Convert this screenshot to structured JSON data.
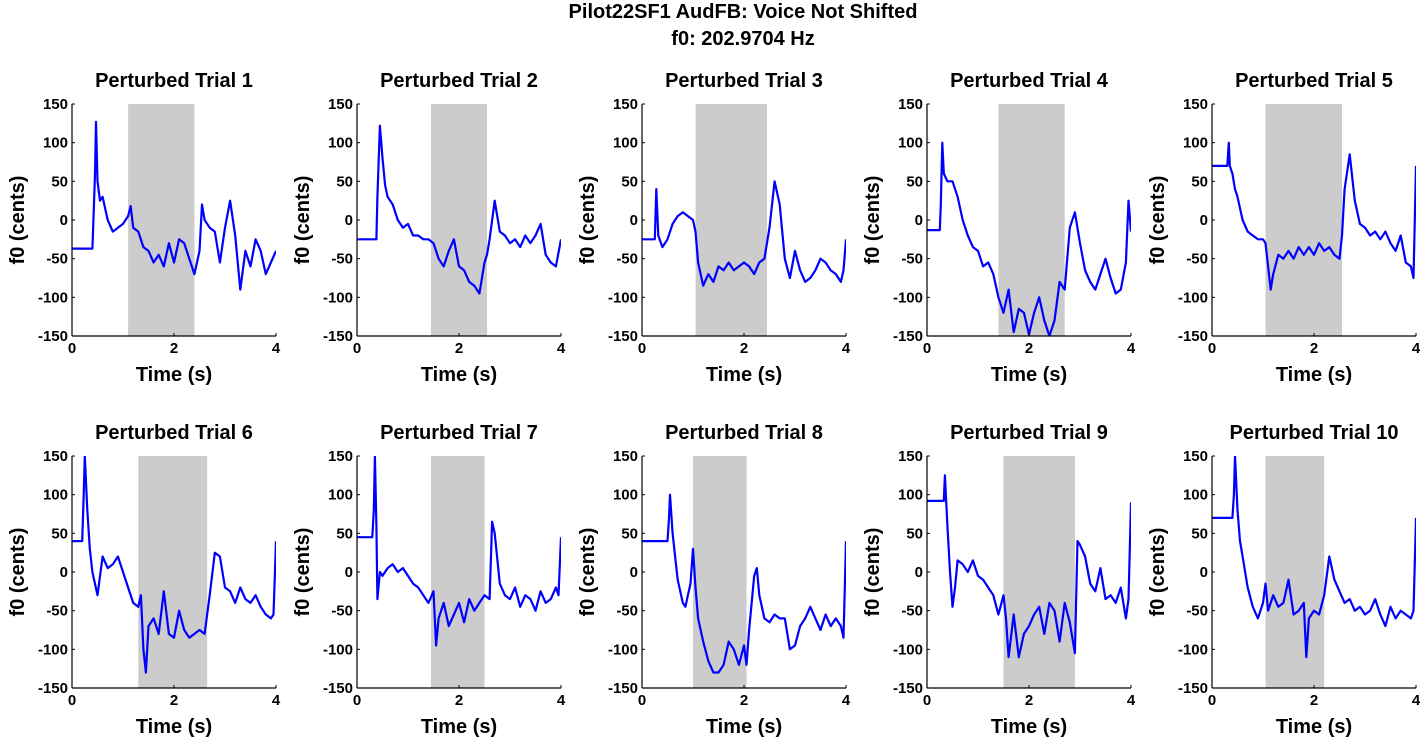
{
  "figure": {
    "title_line1": "Pilot22SF1 AudFB: Voice Not Shifted",
    "title_line2": "f0: 202.9704 Hz"
  },
  "colors": {
    "trace": "#0000ff",
    "shade": "#cccccc",
    "axes": "#000000"
  },
  "chart_data": [
    {
      "type": "line",
      "title": "Perturbed Trial 1",
      "xlabel": "Time (s)",
      "ylabel": "f0 (cents)",
      "xlim": [
        0,
        4
      ],
      "ylim": [
        -150,
        150
      ],
      "xticks": [
        0,
        2,
        4
      ],
      "yticks": [
        -150,
        -100,
        -50,
        0,
        50,
        100,
        150
      ],
      "shaded": [
        1.1,
        2.4
      ],
      "x": [
        0,
        0.4,
        0.41,
        0.45,
        0.47,
        0.5,
        0.55,
        0.6,
        0.7,
        0.8,
        0.9,
        1.0,
        1.1,
        1.15,
        1.2,
        1.3,
        1.4,
        1.5,
        1.6,
        1.7,
        1.8,
        1.9,
        2.0,
        2.1,
        2.2,
        2.3,
        2.4,
        2.5,
        2.55,
        2.6,
        2.7,
        2.8,
        2.9,
        3.0,
        3.1,
        3.2,
        3.3,
        3.4,
        3.5,
        3.6,
        3.7,
        3.8,
        3.9,
        4.0
      ],
      "y": [
        -37,
        -37,
        -20,
        60,
        127,
        50,
        25,
        30,
        0,
        -15,
        -10,
        -5,
        5,
        18,
        -10,
        -15,
        -35,
        -40,
        -55,
        -45,
        -60,
        -30,
        -55,
        -25,
        -30,
        -50,
        -70,
        -40,
        20,
        0,
        -10,
        -15,
        -55,
        -10,
        25,
        -20,
        -90,
        -40,
        -60,
        -25,
        -40,
        -70,
        -55,
        -40
      ]
    },
    {
      "type": "line",
      "title": "Perturbed Trial 2",
      "xlabel": "Time (s)",
      "ylabel": "f0 (cents)",
      "xlim": [
        0,
        4
      ],
      "ylim": [
        -150,
        150
      ],
      "xticks": [
        0,
        2,
        4
      ],
      "yticks": [
        -150,
        -100,
        -50,
        0,
        50,
        100,
        150
      ],
      "shaded": [
        1.45,
        2.55
      ],
      "x": [
        0,
        0.38,
        0.4,
        0.45,
        0.5,
        0.55,
        0.6,
        0.7,
        0.8,
        0.9,
        1.0,
        1.1,
        1.2,
        1.3,
        1.4,
        1.5,
        1.6,
        1.7,
        1.8,
        1.9,
        2.0,
        2.1,
        2.2,
        2.3,
        2.4,
        2.5,
        2.55,
        2.6,
        2.7,
        2.8,
        2.9,
        3.0,
        3.1,
        3.2,
        3.3,
        3.4,
        3.5,
        3.6,
        3.7,
        3.8,
        3.9,
        4.0
      ],
      "y": [
        -25,
        -25,
        30,
        122,
        80,
        45,
        30,
        20,
        0,
        -10,
        -5,
        -20,
        -20,
        -25,
        -25,
        -30,
        -50,
        -60,
        -40,
        -25,
        -60,
        -65,
        -80,
        -85,
        -95,
        -55,
        -45,
        -25,
        25,
        -15,
        -20,
        -30,
        -25,
        -35,
        -20,
        -30,
        -20,
        -5,
        -45,
        -55,
        -60,
        -25
      ]
    },
    {
      "type": "line",
      "title": "Perturbed Trial 3",
      "xlabel": "Time (s)",
      "ylabel": "f0 (cents)",
      "xlim": [
        0,
        4
      ],
      "ylim": [
        -150,
        150
      ],
      "xticks": [
        0,
        2,
        4
      ],
      "yticks": [
        -150,
        -100,
        -50,
        0,
        50,
        100,
        150
      ],
      "shaded": [
        1.05,
        2.45
      ],
      "x": [
        0,
        0.25,
        0.28,
        0.3,
        0.32,
        0.4,
        0.5,
        0.6,
        0.7,
        0.8,
        0.9,
        1.0,
        1.05,
        1.1,
        1.2,
        1.3,
        1.4,
        1.5,
        1.6,
        1.7,
        1.8,
        1.9,
        2.0,
        2.1,
        2.2,
        2.3,
        2.4,
        2.5,
        2.6,
        2.7,
        2.8,
        2.9,
        3.0,
        3.1,
        3.2,
        3.3,
        3.4,
        3.5,
        3.6,
        3.7,
        3.8,
        3.9,
        3.95,
        4.0
      ],
      "y": [
        -25,
        -25,
        40,
        10,
        -20,
        -35,
        -25,
        -5,
        5,
        10,
        5,
        0,
        -15,
        -55,
        -85,
        -70,
        -80,
        -60,
        -65,
        -55,
        -65,
        -60,
        -55,
        -60,
        -70,
        -55,
        -50,
        -10,
        50,
        20,
        -50,
        -75,
        -40,
        -65,
        -80,
        -75,
        -65,
        -50,
        -55,
        -65,
        -70,
        -80,
        -65,
        -25
      ]
    },
    {
      "type": "line",
      "title": "Perturbed Trial 4",
      "xlabel": "Time (s)",
      "ylabel": "f0 (cents)",
      "xlim": [
        0,
        4
      ],
      "ylim": [
        -150,
        150
      ],
      "xticks": [
        0,
        2,
        4
      ],
      "yticks": [
        -150,
        -100,
        -50,
        0,
        50,
        100,
        150
      ],
      "shaded": [
        1.4,
        2.7
      ],
      "x": [
        0,
        0.25,
        0.27,
        0.3,
        0.33,
        0.4,
        0.5,
        0.6,
        0.7,
        0.8,
        0.9,
        1.0,
        1.1,
        1.2,
        1.3,
        1.4,
        1.5,
        1.6,
        1.7,
        1.8,
        1.9,
        2.0,
        2.1,
        2.2,
        2.3,
        2.4,
        2.5,
        2.6,
        2.7,
        2.8,
        2.9,
        3.0,
        3.1,
        3.2,
        3.3,
        3.4,
        3.5,
        3.6,
        3.7,
        3.8,
        3.9,
        3.95,
        4.0
      ],
      "y": [
        -13,
        -13,
        20,
        100,
        60,
        50,
        50,
        30,
        0,
        -20,
        -35,
        -40,
        -60,
        -55,
        -70,
        -100,
        -120,
        -90,
        -145,
        -115,
        -120,
        -148,
        -120,
        -100,
        -130,
        -150,
        -130,
        -80,
        -90,
        -10,
        10,
        -30,
        -65,
        -80,
        -90,
        -70,
        -50,
        -75,
        -95,
        -90,
        -55,
        25,
        -15
      ]
    },
    {
      "type": "line",
      "title": "Perturbed Trial 5",
      "xlabel": "Time (s)",
      "ylabel": "f0 (cents)",
      "xlim": [
        0,
        4
      ],
      "ylim": [
        -150,
        150
      ],
      "xticks": [
        0,
        2,
        4
      ],
      "yticks": [
        -150,
        -100,
        -50,
        0,
        50,
        100,
        150
      ],
      "shaded": [
        1.05,
        2.55
      ],
      "x": [
        0,
        0.3,
        0.33,
        0.35,
        0.4,
        0.45,
        0.5,
        0.6,
        0.7,
        0.8,
        0.9,
        1.0,
        1.05,
        1.1,
        1.15,
        1.2,
        1.3,
        1.4,
        1.5,
        1.6,
        1.7,
        1.8,
        1.9,
        2.0,
        2.1,
        2.2,
        2.3,
        2.4,
        2.5,
        2.55,
        2.6,
        2.7,
        2.8,
        2.9,
        3.0,
        3.1,
        3.2,
        3.3,
        3.4,
        3.5,
        3.6,
        3.7,
        3.8,
        3.9,
        3.95,
        4.0
      ],
      "y": [
        70,
        70,
        100,
        70,
        60,
        40,
        30,
        0,
        -15,
        -20,
        -25,
        -25,
        -30,
        -60,
        -90,
        -70,
        -45,
        -50,
        -40,
        -50,
        -35,
        -45,
        -35,
        -45,
        -30,
        -40,
        -35,
        -45,
        -50,
        -20,
        40,
        85,
        25,
        -5,
        -10,
        -20,
        -15,
        -25,
        -15,
        -30,
        -40,
        -20,
        -55,
        -60,
        -75,
        70
      ]
    },
    {
      "type": "line",
      "title": "Perturbed Trial 6",
      "xlabel": "Time (s)",
      "ylabel": "f0 (cents)",
      "xlim": [
        0,
        4
      ],
      "ylim": [
        -150,
        150
      ],
      "xticks": [
        0,
        2,
        4
      ],
      "yticks": [
        -150,
        -100,
        -50,
        0,
        50,
        100,
        150
      ],
      "shaded": [
        1.3,
        2.65
      ],
      "x": [
        0,
        0.2,
        0.23,
        0.25,
        0.3,
        0.35,
        0.4,
        0.5,
        0.6,
        0.7,
        0.8,
        0.9,
        1.0,
        1.1,
        1.2,
        1.3,
        1.35,
        1.4,
        1.45,
        1.5,
        1.6,
        1.7,
        1.8,
        1.9,
        2.0,
        2.1,
        2.2,
        2.3,
        2.4,
        2.5,
        2.6,
        2.7,
        2.8,
        2.9,
        3.0,
        3.1,
        3.2,
        3.3,
        3.4,
        3.5,
        3.6,
        3.7,
        3.8,
        3.9,
        3.95,
        4.0
      ],
      "y": [
        40,
        40,
        100,
        150,
        80,
        30,
        0,
        -30,
        20,
        5,
        10,
        20,
        0,
        -20,
        -40,
        -45,
        -30,
        -100,
        -130,
        -70,
        -60,
        -80,
        -25,
        -80,
        -85,
        -50,
        -75,
        -85,
        -80,
        -75,
        -80,
        -30,
        25,
        20,
        -20,
        -25,
        -40,
        -20,
        -35,
        -40,
        -30,
        -45,
        -55,
        -60,
        -55,
        40
      ]
    },
    {
      "type": "line",
      "title": "Perturbed Trial 7",
      "xlabel": "Time (s)",
      "ylabel": "f0 (cents)",
      "xlim": [
        0,
        4
      ],
      "ylim": [
        -150,
        150
      ],
      "xticks": [
        0,
        2,
        4
      ],
      "yticks": [
        -150,
        -100,
        -50,
        0,
        50,
        100,
        150
      ],
      "shaded": [
        1.45,
        2.5
      ],
      "x": [
        0,
        0.3,
        0.33,
        0.35,
        0.38,
        0.4,
        0.45,
        0.5,
        0.6,
        0.7,
        0.8,
        0.9,
        1.0,
        1.1,
        1.2,
        1.3,
        1.4,
        1.5,
        1.55,
        1.6,
        1.7,
        1.8,
        1.9,
        2.0,
        2.1,
        2.2,
        2.3,
        2.4,
        2.5,
        2.6,
        2.65,
        2.7,
        2.8,
        2.9,
        3.0,
        3.1,
        3.2,
        3.3,
        3.4,
        3.5,
        3.6,
        3.7,
        3.8,
        3.9,
        3.95,
        4.0
      ],
      "y": [
        45,
        45,
        80,
        150,
        60,
        -35,
        0,
        -5,
        5,
        10,
        0,
        5,
        -5,
        -15,
        -20,
        -30,
        -40,
        -25,
        -95,
        -60,
        -40,
        -70,
        -55,
        -40,
        -65,
        -35,
        -50,
        -40,
        -30,
        -35,
        65,
        50,
        -15,
        -30,
        -35,
        -20,
        -45,
        -30,
        -35,
        -50,
        -25,
        -40,
        -35,
        -20,
        -30,
        45
      ]
    },
    {
      "type": "line",
      "title": "Perturbed Trial 8",
      "xlabel": "Time (s)",
      "ylabel": "f0 (cents)",
      "xlim": [
        0,
        4
      ],
      "ylim": [
        -150,
        150
      ],
      "xticks": [
        0,
        2,
        4
      ],
      "yticks": [
        -150,
        -100,
        -50,
        0,
        50,
        100,
        150
      ],
      "shaded": [
        1.0,
        2.05
      ],
      "x": [
        0,
        0.5,
        0.53,
        0.55,
        0.6,
        0.65,
        0.7,
        0.8,
        0.85,
        0.9,
        0.95,
        1.0,
        1.05,
        1.1,
        1.2,
        1.3,
        1.4,
        1.5,
        1.6,
        1.7,
        1.8,
        1.9,
        2.0,
        2.05,
        2.1,
        2.2,
        2.25,
        2.3,
        2.4,
        2.5,
        2.6,
        2.7,
        2.8,
        2.9,
        3.0,
        3.1,
        3.2,
        3.3,
        3.4,
        3.5,
        3.6,
        3.7,
        3.8,
        3.9,
        3.95,
        4.0
      ],
      "y": [
        40,
        40,
        70,
        100,
        50,
        20,
        -10,
        -40,
        -45,
        -30,
        -15,
        30,
        -20,
        -60,
        -90,
        -115,
        -130,
        -130,
        -120,
        -90,
        -100,
        -120,
        -95,
        -120,
        -75,
        -5,
        5,
        -30,
        -60,
        -65,
        -55,
        -60,
        -60,
        -100,
        -95,
        -70,
        -60,
        -45,
        -60,
        -75,
        -55,
        -70,
        -60,
        -70,
        -85,
        40
      ]
    },
    {
      "type": "line",
      "title": "Perturbed Trial 9",
      "xlabel": "Time (s)",
      "ylabel": "f0 (cents)",
      "xlim": [
        0,
        4
      ],
      "ylim": [
        -150,
        150
      ],
      "xticks": [
        0,
        2,
        4
      ],
      "yticks": [
        -150,
        -100,
        -50,
        0,
        50,
        100,
        150
      ],
      "shaded": [
        1.5,
        2.9
      ],
      "x": [
        0,
        0.3,
        0.33,
        0.35,
        0.4,
        0.45,
        0.5,
        0.55,
        0.6,
        0.7,
        0.8,
        0.9,
        1.0,
        1.1,
        1.2,
        1.3,
        1.4,
        1.5,
        1.55,
        1.6,
        1.7,
        1.8,
        1.9,
        2.0,
        2.1,
        2.2,
        2.3,
        2.4,
        2.5,
        2.6,
        2.7,
        2.8,
        2.9,
        2.95,
        3.0,
        3.1,
        3.2,
        3.3,
        3.4,
        3.5,
        3.6,
        3.7,
        3.8,
        3.9,
        3.95,
        4.0
      ],
      "y": [
        92,
        92,
        92,
        125,
        60,
        0,
        -45,
        -20,
        15,
        10,
        0,
        15,
        -5,
        -10,
        -20,
        -30,
        -55,
        -30,
        -60,
        -110,
        -55,
        -110,
        -80,
        -70,
        -55,
        -45,
        -80,
        -40,
        -50,
        -90,
        -40,
        -65,
        -105,
        40,
        35,
        20,
        -15,
        -25,
        5,
        -35,
        -30,
        -40,
        -20,
        -60,
        -35,
        90
      ]
    },
    {
      "type": "line",
      "title": "Perturbed Trial 10",
      "xlabel": "Time (s)",
      "ylabel": "f0 (cents)",
      "xlim": [
        0,
        4
      ],
      "ylim": [
        -150,
        150
      ],
      "xticks": [
        0,
        2,
        4
      ],
      "yticks": [
        -150,
        -100,
        -50,
        0,
        50,
        100,
        150
      ],
      "shaded": [
        1.05,
        2.2
      ],
      "x": [
        0,
        0.4,
        0.43,
        0.45,
        0.5,
        0.55,
        0.6,
        0.7,
        0.8,
        0.9,
        1.0,
        1.05,
        1.1,
        1.2,
        1.3,
        1.4,
        1.5,
        1.6,
        1.7,
        1.8,
        1.85,
        1.9,
        2.0,
        2.1,
        2.2,
        2.3,
        2.4,
        2.5,
        2.6,
        2.7,
        2.8,
        2.9,
        3.0,
        3.1,
        3.2,
        3.3,
        3.4,
        3.5,
        3.6,
        3.7,
        3.8,
        3.9,
        3.95,
        4.0
      ],
      "y": [
        70,
        70,
        100,
        150,
        80,
        40,
        20,
        -20,
        -45,
        -60,
        -40,
        -15,
        -50,
        -30,
        -45,
        -40,
        -10,
        -55,
        -50,
        -40,
        -110,
        -60,
        -50,
        -55,
        -30,
        20,
        -10,
        -25,
        -40,
        -35,
        -50,
        -45,
        -55,
        -50,
        -35,
        -55,
        -70,
        -45,
        -60,
        -50,
        -55,
        -60,
        -50,
        70
      ]
    }
  ]
}
